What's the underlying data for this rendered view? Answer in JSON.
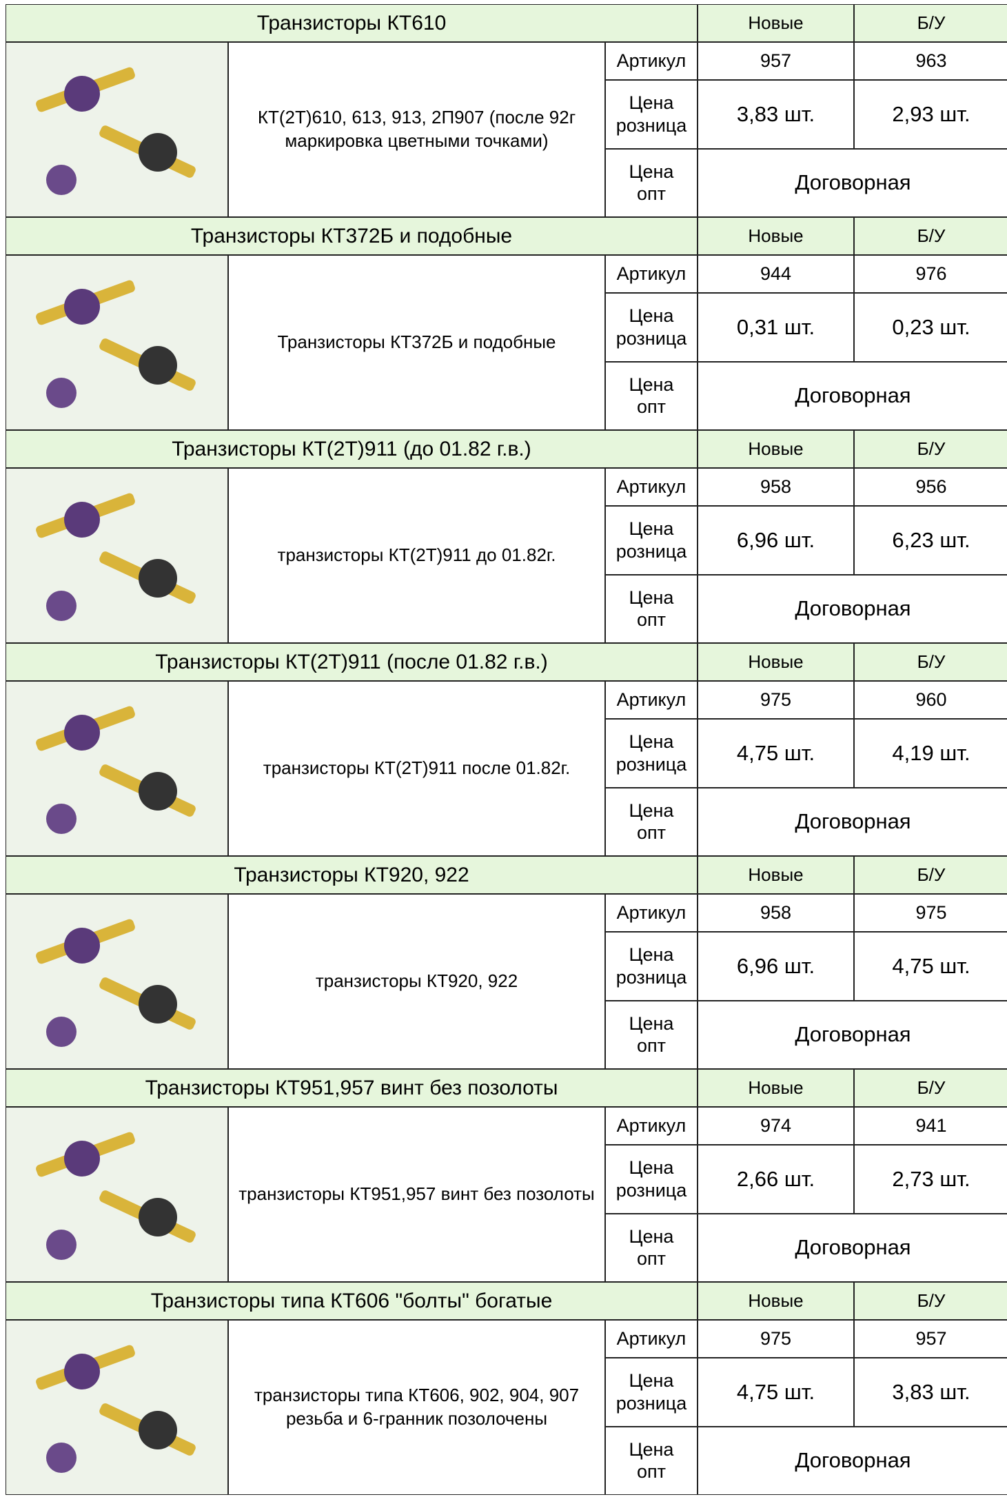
{
  "sections": [
    {
      "title": "Транзисторы КТ610",
      "new_label": "Новые",
      "used_label": "Б/У",
      "description": "КТ(2Т)610, 613, 913, 2П907 (после 92г маркировка цветными точками)",
      "article_label": "Артикул",
      "article_new": "957",
      "article_used": "963",
      "retail_label": "Цена розница",
      "retail_new": "3,83 шт.",
      "retail_used": "2,93 шт.",
      "opt_label": "Цена опт",
      "opt_price": "Договорная"
    },
    {
      "title": "Транзисторы КТ372Б и подобные",
      "new_label": "Новые",
      "used_label": "Б/У",
      "description": "Транзисторы КТ372Б и подобные",
      "article_label": "Артикул",
      "article_new": "944",
      "article_used": "976",
      "retail_label": "Цена розница",
      "retail_new": "0,31 шт.",
      "retail_used": "0,23 шт.",
      "opt_label": "Цена опт",
      "opt_price": "Договорная"
    },
    {
      "title": "Транзисторы КТ(2Т)911 (до 01.82 г.в.)",
      "new_label": "Новые",
      "used_label": "Б/У",
      "description": "транзисторы КТ(2Т)911 до 01.82г.",
      "article_label": "Артикул",
      "article_new": "958",
      "article_used": "956",
      "retail_label": "Цена розница",
      "retail_new": "6,96 шт.",
      "retail_used": "6,23 шт.",
      "opt_label": "Цена опт",
      "opt_price": "Договорная"
    },
    {
      "title": "Транзисторы КТ(2Т)911 (после 01.82 г.в.)",
      "new_label": "Новые",
      "used_label": "Б/У",
      "description": "транзисторы КТ(2Т)911 после 01.82г.",
      "article_label": "Артикул",
      "article_new": "975",
      "article_used": "960",
      "retail_label": "Цена розница",
      "retail_new": "4,75 шт.",
      "retail_used": "4,19 шт.",
      "opt_label": "Цена опт",
      "opt_price": "Договорная"
    },
    {
      "title": "Транзисторы КТ920, 922",
      "new_label": "Новые",
      "used_label": "Б/У",
      "description": "транзисторы КТ920, 922",
      "article_label": "Артикул",
      "article_new": "958",
      "article_used": "975",
      "retail_label": "Цена розница",
      "retail_new": "6,96 шт.",
      "retail_used": "4,75 шт.",
      "opt_label": "Цена опт",
      "opt_price": "Договорная"
    },
    {
      "title": "Транзисторы КТ951,957 винт без позолоты",
      "new_label": "Новые",
      "used_label": "Б/У",
      "description": "транзисторы КТ951,957 винт без позолоты",
      "article_label": "Артикул",
      "article_new": "974",
      "article_used": "941",
      "retail_label": "Цена розница",
      "retail_new": "2,66 шт.",
      "retail_used": "2,73 шт.",
      "opt_label": "Цена опт",
      "opt_price": "Договорная"
    },
    {
      "title": "Транзисторы типа КТ606 \"болты\" богатые",
      "new_label": "Новые",
      "used_label": "Б/У",
      "description": "транзисторы типа КТ606, 902, 904, 907 резьба и 6-гранник позолочены",
      "article_label": "Артикул",
      "article_new": "975",
      "article_used": "957",
      "retail_label": "Цена розница",
      "retail_new": "4,75 шт.",
      "retail_used": "3,83 шт.",
      "opt_label": "Цена опт",
      "opt_price": "Договорная"
    }
  ]
}
